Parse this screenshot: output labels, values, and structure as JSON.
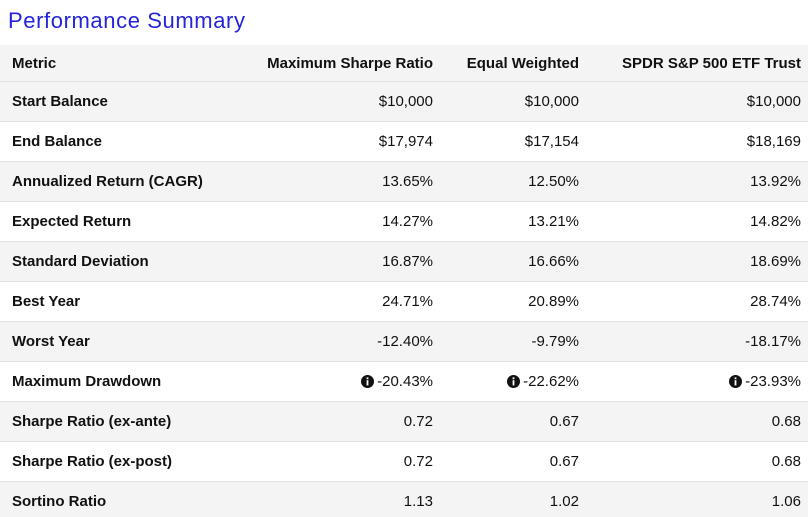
{
  "header": {
    "title": "Performance Summary"
  },
  "table": {
    "columns": [
      "Metric",
      "Maximum Sharpe Ratio",
      "Equal Weighted",
      "SPDR S&P 500 ETF Trust"
    ],
    "rows": [
      [
        "Start Balance",
        "$10,000",
        "$10,000",
        "$10,000"
      ],
      [
        "End Balance",
        "$17,974",
        "$17,154",
        "$18,169"
      ],
      [
        "Annualized Return (CAGR)",
        "13.65%",
        "12.50%",
        "13.92%"
      ],
      [
        "Expected Return",
        "14.27%",
        "13.21%",
        "14.82%"
      ],
      [
        "Standard Deviation",
        "16.87%",
        "16.66%",
        "18.69%"
      ],
      [
        "Best Year",
        "24.71%",
        "20.89%",
        "28.74%"
      ],
      [
        "Worst Year",
        "-12.40%",
        "-9.79%",
        "-18.17%"
      ],
      [
        "Maximum Drawdown",
        "-20.43%",
        "-22.62%",
        "-23.93%"
      ],
      [
        "Sharpe Ratio (ex-ante)",
        "0.72",
        "0.67",
        "0.68"
      ],
      [
        "Sharpe Ratio (ex-post)",
        "0.72",
        "0.67",
        "0.68"
      ],
      [
        "Sortino Ratio",
        "1.13",
        "1.02",
        "1.06"
      ]
    ]
  }
}
